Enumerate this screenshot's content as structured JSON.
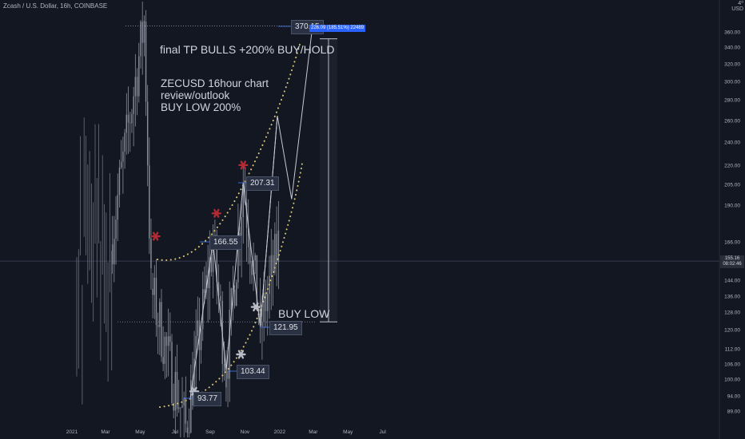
{
  "header": {
    "symbol_line": "Zcash / U.S. Dollar, 16h, COINBASE",
    "corner_top": "4⁰",
    "corner_bottom": "USD"
  },
  "annotations": {
    "target_text": "final TP BULLS +200% BUY/HOLD",
    "outlook_line1": "ZECUSD 16hour chart",
    "outlook_line2": "review/outlook",
    "outlook_line3": "BUY LOW 200%",
    "buy_low": "BUY LOW",
    "range_tag": "226.09 (185.51%) 22489"
  },
  "price_labels": {
    "p370": "370.15",
    "p207": "207.31",
    "p166": "166.55",
    "p121": "121.95",
    "p103": "103.44",
    "p93": "93.77"
  },
  "current_price": {
    "value": "155.16",
    "countdown": "08:02:46"
  },
  "colors": {
    "background": "#131722",
    "candles": "#8a8f9c",
    "dotted_curves": "#d7c776",
    "red_marker": "#b22a33",
    "gray_marker": "#b8bcc6",
    "label_bg": "#2a3142",
    "accent_blue": "#2962ff"
  },
  "chart_data": {
    "type": "line",
    "title": "",
    "xlabel": "",
    "ylabel": "",
    "y_scale": "log",
    "ylim": [
      82,
      400
    ],
    "x_ticks": [
      "2021",
      "Mar",
      "May",
      "Jul",
      "Sep",
      "Nov",
      "2022",
      "Mar",
      "May",
      "Jul"
    ],
    "y_ticks": [
      "360.00",
      "340.00",
      "320.00",
      "300.00",
      "280.00",
      "260.00",
      "240.00",
      "220.00",
      "205.00",
      "190.00",
      "166.00",
      "155.16",
      "144.00",
      "136.00",
      "128.00",
      "120.00",
      "112.00",
      "106.00",
      "100.00",
      "94.00",
      "89.00"
    ],
    "series": [
      {
        "values": [
          {
            "x": "2021-03-10",
            "y": 165
          },
          {
            "x": "2021-05-08",
            "y": 375
          },
          {
            "x": "2021-05-20",
            "y": 140
          },
          {
            "x": "2021-07-20",
            "y": 84
          },
          {
            "x": "2021-09-06",
            "y": 166.55
          },
          {
            "x": "2021-09-29",
            "y": 103.44
          },
          {
            "x": "2021-10-29",
            "y": 207.31
          },
          {
            "x": "2021-11-28",
            "y": 121.95
          },
          {
            "x": "2021-12-30",
            "y": 165
          }
        ]
      },
      {
        "values": [
          {
            "x": "2021-07-28",
            "y": 93.77
          },
          {
            "x": "2021-09-06",
            "y": 166.55
          },
          {
            "x": "2021-09-29",
            "y": 103.44
          },
          {
            "x": "2021-10-29",
            "y": 207.31
          },
          {
            "x": "2021-11-28",
            "y": 121.95
          },
          {
            "x": "2021-12-28",
            "y": 265
          },
          {
            "x": "2022-01-22",
            "y": 195
          },
          {
            "x": "2022-02-28",
            "y": 370.15
          }
        ]
      }
    ],
    "levels": [
      {
        "y": 370.15
      },
      {
        "y": 124
      }
    ],
    "markers": [
      {
        "x": "2021-05-28",
        "y": 170,
        "color": "red"
      },
      {
        "x": "2021-09-12",
        "y": 185,
        "color": "red"
      },
      {
        "x": "2021-10-29",
        "y": 221,
        "color": "red"
      },
      {
        "x": "2021-08-04",
        "y": 96,
        "color": "gray"
      },
      {
        "x": "2021-10-25",
        "y": 110,
        "color": "gray"
      },
      {
        "x": "2021-11-20",
        "y": 131,
        "color": "gray"
      }
    ]
  }
}
